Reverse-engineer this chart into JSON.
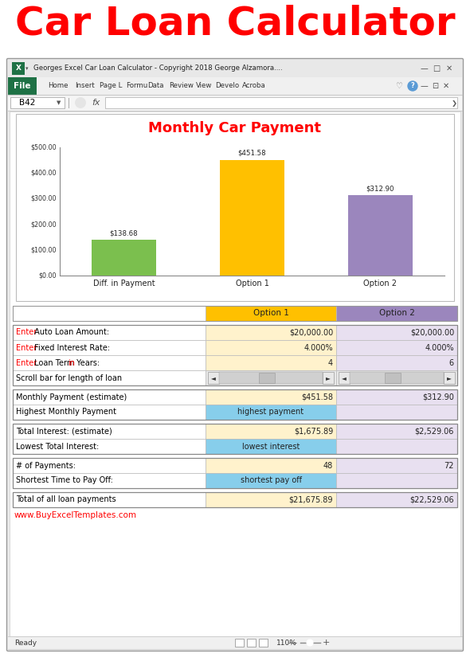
{
  "title": "Car Loan Calculator",
  "title_color": "#FF0000",
  "title_fontsize": 36,
  "excel_title": "Georges Excel Car Loan Calculator - Copyright 2018 George Alzamora....",
  "formula_bar_text": "B42",
  "ribbon_tabs": [
    "Home",
    "Insert",
    "Page L",
    "Formu",
    "Data",
    "Review",
    "View",
    "Develo",
    "Acroba"
  ],
  "chart_title": "Monthly Car Payment",
  "chart_title_color": "#FF0000",
  "bar_labels": [
    "Diff. in Payment",
    "Option 1",
    "Option 2"
  ],
  "bar_values": [
    138.68,
    451.58,
    312.9
  ],
  "bar_colors": [
    "#7BBF4E",
    "#FFC000",
    "#9B86BD"
  ],
  "bar_value_labels": [
    "$138.68",
    "$451.58",
    "$312.90"
  ],
  "y_ticks": [
    0,
    100,
    200,
    300,
    400,
    500
  ],
  "y_tick_labels": [
    "$0.00",
    "$100.00",
    "$200.00",
    "$300.00",
    "$400.00",
    "$500.00"
  ],
  "rows": [
    {
      "label_parts": [
        {
          "text": "Enter",
          "color": "#FF0000"
        },
        {
          "text": " Auto Loan Amount:",
          "color": "#000000"
        }
      ],
      "opt1": "$20,000.00",
      "opt2": "$20,000.00",
      "opt1_bg": "#FFF2CC",
      "opt2_bg": "#E8E0F0"
    },
    {
      "label_parts": [
        {
          "text": "Enter",
          "color": "#FF0000"
        },
        {
          "text": " Fixed Interest Rate:",
          "color": "#000000"
        }
      ],
      "opt1": "4.000%",
      "opt2": "4.000%",
      "opt1_bg": "#FFF2CC",
      "opt2_bg": "#E8E0F0"
    },
    {
      "label_parts": [
        {
          "text": "Enter",
          "color": "#FF0000"
        },
        {
          "text": " Loan Term ",
          "color": "#000000"
        },
        {
          "text": "in",
          "color": "#FF0000"
        },
        {
          "text": " Years:",
          "color": "#000000"
        }
      ],
      "opt1": "4",
      "opt2": "6",
      "opt1_bg": "#FFF2CC",
      "opt2_bg": "#E8E0F0"
    },
    {
      "label_parts": [
        {
          "text": "Scroll bar for length of loan",
          "color": "#000000"
        }
      ],
      "opt1": "scrollbar",
      "opt2": "scrollbar",
      "opt1_bg": "#E8E8E8",
      "opt2_bg": "#E8E8E8"
    },
    {
      "label_parts": [
        {
          "text": "Monthly Payment (estimate)",
          "color": "#000000"
        }
      ],
      "opt1": "$451.58",
      "opt2": "$312.90",
      "opt1_bg": "#FFF2CC",
      "opt2_bg": "#E8E0F0",
      "section_break": true
    },
    {
      "label_parts": [
        {
          "text": "Highest Monthly Payment",
          "color": "#000000"
        }
      ],
      "opt1": "highest payment",
      "opt2": "",
      "opt1_bg": "#87CEEB",
      "opt2_bg": "#E8E0F0",
      "highlight": true
    },
    {
      "label_parts": [
        {
          "text": "Total Interest: (estimate)",
          "color": "#000000"
        }
      ],
      "opt1": "$1,675.89",
      "opt2": "$2,529.06",
      "opt1_bg": "#FFF2CC",
      "opt2_bg": "#E8E0F0",
      "section_break": true
    },
    {
      "label_parts": [
        {
          "text": "Lowest Total Interest:",
          "color": "#000000"
        }
      ],
      "opt1": "lowest interest",
      "opt2": "",
      "opt1_bg": "#87CEEB",
      "opt2_bg": "#E8E0F0",
      "highlight": true
    },
    {
      "label_parts": [
        {
          "text": "# of Payments:",
          "color": "#000000"
        }
      ],
      "opt1": "48",
      "opt2": "72",
      "opt1_bg": "#FFF2CC",
      "opt2_bg": "#E8E0F0",
      "section_break": true
    },
    {
      "label_parts": [
        {
          "text": "Shortest Time to Pay Off:",
          "color": "#000000"
        }
      ],
      "opt1": "shortest pay off",
      "opt2": "",
      "opt1_bg": "#87CEEB",
      "opt2_bg": "#E8E0F0",
      "highlight": true
    },
    {
      "label_parts": [
        {
          "text": "Total of all loan payments",
          "color": "#000000"
        }
      ],
      "opt1": "$21,675.89",
      "opt2": "$22,529.06",
      "opt1_bg": "#FFF2CC",
      "opt2_bg": "#E8E0F0",
      "section_break": true
    }
  ],
  "website": "www.BuyExcelTemplates.com",
  "website_color": "#FF0000",
  "bg_color": "#FFFFFF",
  "statusbar_text": "Ready",
  "zoom_text": "110%"
}
